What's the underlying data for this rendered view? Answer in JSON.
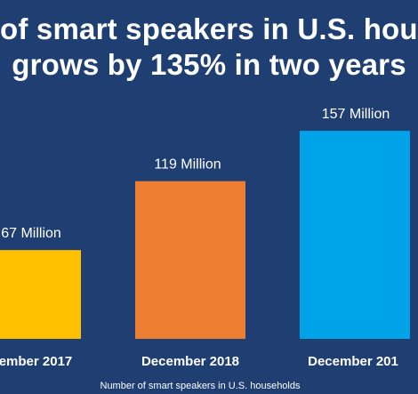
{
  "title": {
    "line1": "of smart speakers in U.S. hou",
    "line2": "grows by 135% in two years"
  },
  "caption": "Number of smart speakers in U.S. households",
  "chart_data": {
    "type": "bar",
    "categories": [
      "ember 2017",
      "December 2018",
      "December 201"
    ],
    "values": [
      67,
      119,
      157
    ],
    "value_labels": [
      "67 Million",
      "119 Million",
      "157 Million"
    ],
    "colors": [
      "#ffc000",
      "#ed7d31",
      "#00a2e8"
    ],
    "grid": false,
    "legend": "none"
  }
}
